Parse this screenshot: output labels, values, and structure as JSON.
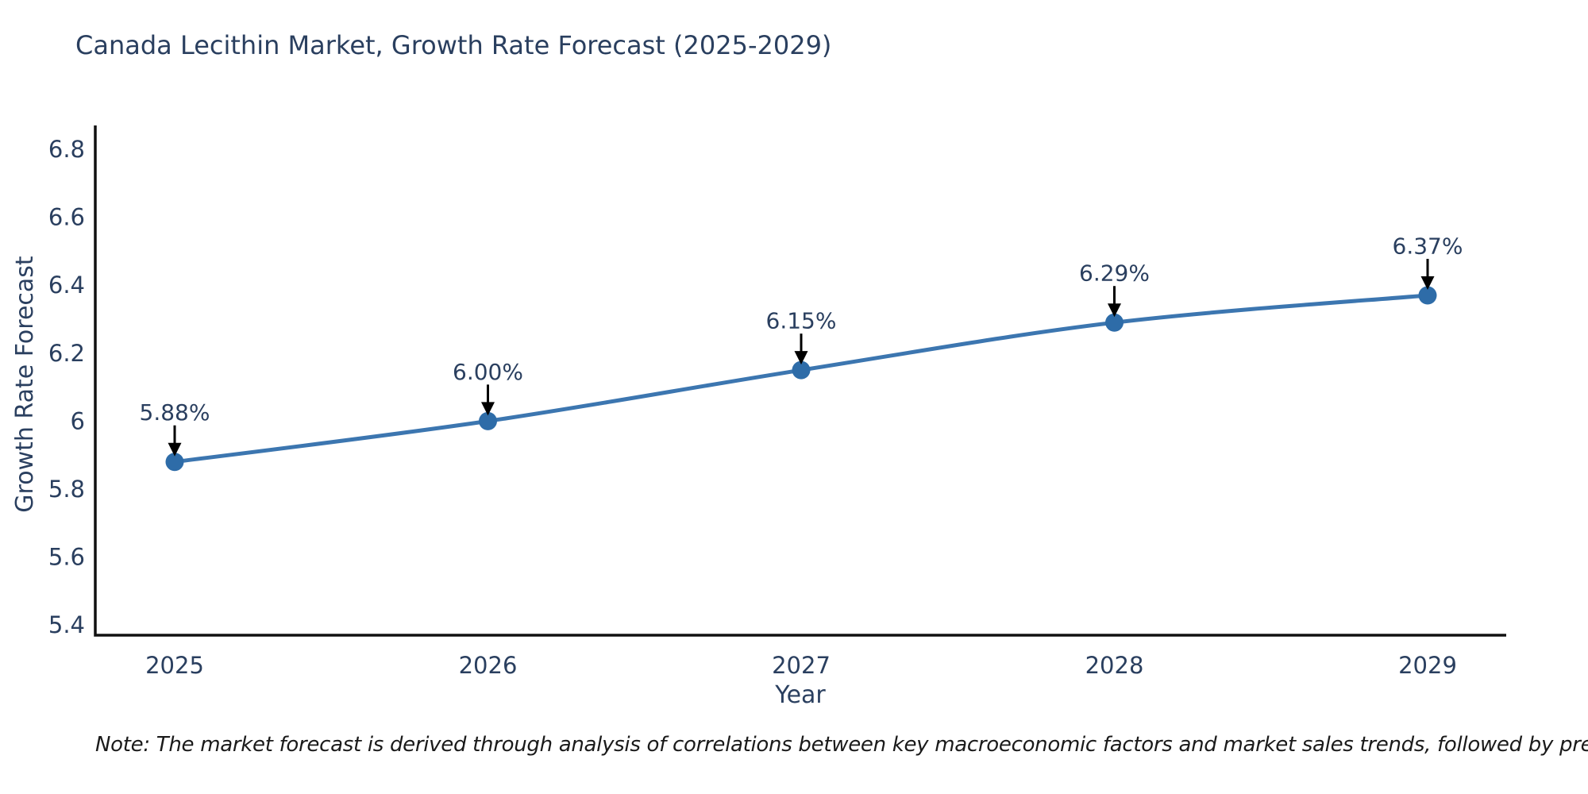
{
  "title": "Canada Lecithin Market, Growth Rate Forecast (2025-2029)",
  "note": "Note: The market forecast is derived through analysis of correlations between key macroeconomic factors and market sales trends, followed by predictive modeling to project future sales",
  "chart_data": {
    "type": "line",
    "title": "Canada Lecithin Market, Growth Rate Forecast (2025-2029)",
    "xlabel": "Year",
    "ylabel": "Growth Rate Forecast",
    "x": [
      2025,
      2026,
      2027,
      2028,
      2029
    ],
    "y": [
      5.88,
      6.0,
      6.15,
      6.29,
      6.37
    ],
    "point_labels": [
      "5.88%",
      "6.00%",
      "6.15%",
      "6.29%",
      "6.37%"
    ],
    "x_tick_labels": [
      "2025",
      "2026",
      "2027",
      "2028",
      "2029"
    ],
    "y_ticks": [
      5.4,
      5.6,
      5.8,
      6,
      6.2,
      6.4,
      6.6,
      6.8
    ],
    "y_tick_labels": [
      "5.4",
      "5.6",
      "5.8",
      "6",
      "6.2",
      "6.4",
      "6.6",
      "6.8"
    ],
    "ylim": [
      5.37,
      6.87
    ],
    "xlim": [
      2024.75,
      2029.25
    ],
    "grid": false,
    "legend": false,
    "annotations_have_arrows": true,
    "colors": {
      "line": "#3c76b0",
      "marker": "#2e6ca8",
      "axis_line": "#111111",
      "tick_label": "#2a3f5f",
      "axis_title": "#2a3f5f",
      "chart_title": "#2a3f5f",
      "annotation_text": "#2a3f5f",
      "arrow": "#000000",
      "background": "#ffffff"
    }
  }
}
